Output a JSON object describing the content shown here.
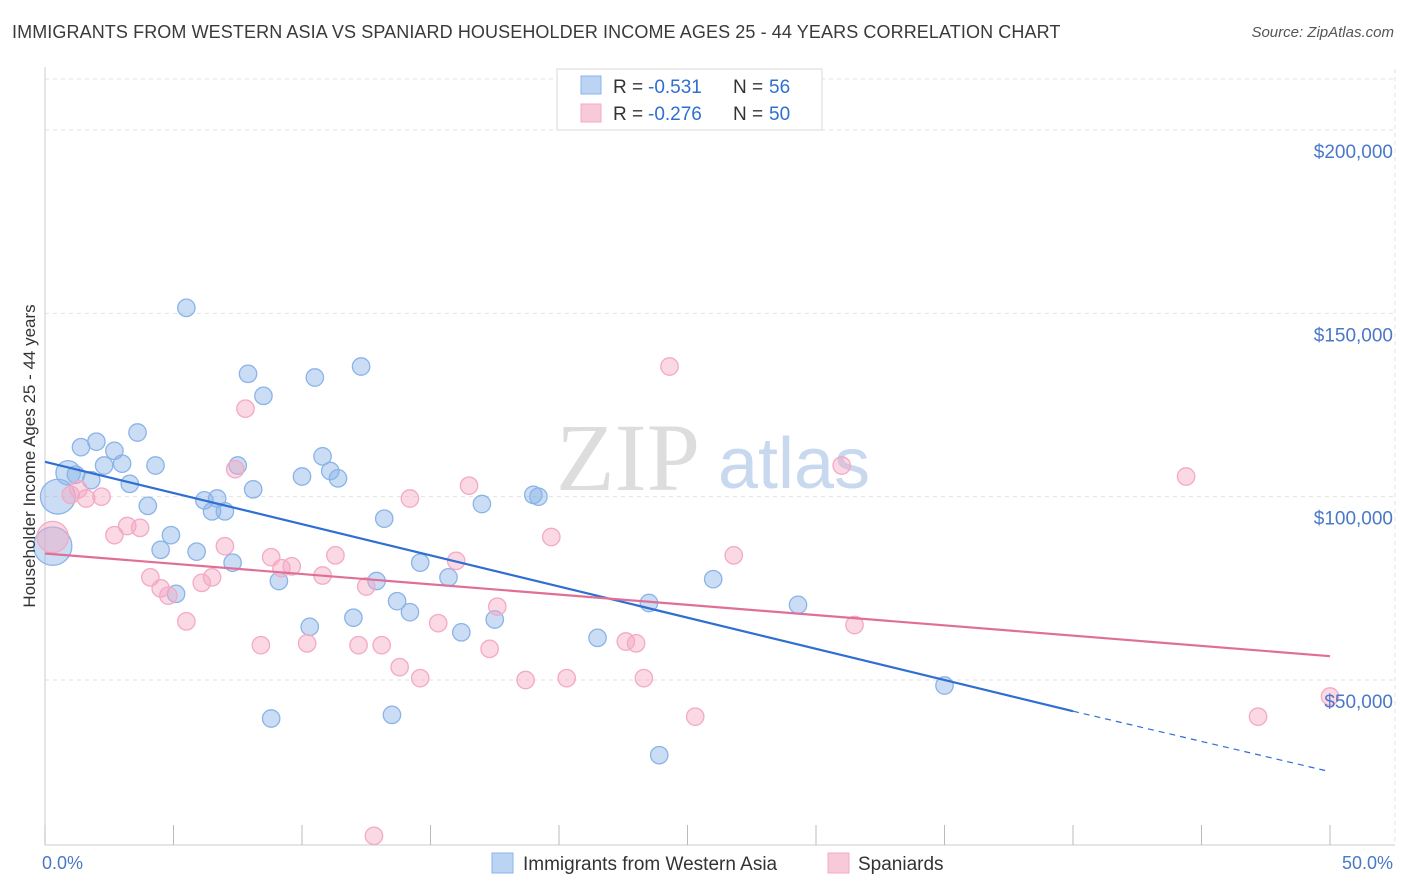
{
  "title": "IMMIGRANTS FROM WESTERN ASIA VS SPANIARD HOUSEHOLDER INCOME AGES 25 - 44 YEARS CORRELATION CHART",
  "source": "Source: ZipAtlas.com",
  "watermark": {
    "zip": "ZIP",
    "atlas": "atlas"
  },
  "legend": {
    "r_label": "R =",
    "n_label": "N =",
    "entries": [
      {
        "r": "-0.531",
        "n": "56"
      },
      {
        "r": "-0.276",
        "n": "50"
      }
    ]
  },
  "chart_data": {
    "type": "scatter",
    "ylabel": "Householder Income Ages 25 - 44 years",
    "xlim": [
      0,
      50
    ],
    "ylim": [
      5000,
      215000
    ],
    "x_tick_labels": [
      {
        "value": 0,
        "label": "0.0%"
      },
      {
        "value": 50,
        "label": "50.0%"
      }
    ],
    "y_ticks": [
      {
        "value": 50000,
        "label": "$50,000"
      },
      {
        "value": 100000,
        "label": "$100,000"
      },
      {
        "value": 150000,
        "label": "$150,000"
      },
      {
        "value": 200000,
        "label": "$200,000"
      }
    ],
    "grid": true,
    "legend_position": "top-center",
    "series": [
      {
        "name": "Immigrants from Western Asia",
        "color": "#8ab4e8",
        "line_color": "#2e6fd1",
        "trend": {
          "x0": 0,
          "y0": 109500,
          "x1": 40,
          "y1": 41500,
          "dash_to_x": 50,
          "dash_to_y": 25000
        },
        "points": [
          [
            0.3,
            86500,
            22
          ],
          [
            0.5,
            100000,
            20
          ],
          [
            0.9,
            106500,
            14
          ],
          [
            1.2,
            106000,
            10
          ],
          [
            1.4,
            113500,
            10
          ],
          [
            1.8,
            104500,
            10
          ],
          [
            2.0,
            115000,
            10
          ],
          [
            2.3,
            108500,
            10
          ],
          [
            2.7,
            112500,
            10
          ],
          [
            3.0,
            109000,
            10
          ],
          [
            3.3,
            103500,
            10
          ],
          [
            3.6,
            117500,
            10
          ],
          [
            4.0,
            97500,
            10
          ],
          [
            4.3,
            108500,
            10
          ],
          [
            4.5,
            85500,
            10
          ],
          [
            4.9,
            89500,
            10
          ],
          [
            5.1,
            73500,
            10
          ],
          [
            5.5,
            151500,
            10
          ],
          [
            5.9,
            85000,
            10
          ],
          [
            6.2,
            99000,
            10
          ],
          [
            6.5,
            96000,
            10
          ],
          [
            6.7,
            99500,
            10
          ],
          [
            7.0,
            96000,
            10
          ],
          [
            7.3,
            82000,
            10
          ],
          [
            7.5,
            108500,
            10
          ],
          [
            7.9,
            133500,
            10
          ],
          [
            8.1,
            102000,
            10
          ],
          [
            8.5,
            127500,
            10
          ],
          [
            8.8,
            39500,
            10
          ],
          [
            9.1,
            77000,
            10
          ],
          [
            10.0,
            105500,
            10
          ],
          [
            10.3,
            64500,
            10
          ],
          [
            10.5,
            132500,
            10
          ],
          [
            10.8,
            111000,
            10
          ],
          [
            11.1,
            107000,
            10
          ],
          [
            11.4,
            105000,
            10
          ],
          [
            12.0,
            67000,
            10
          ],
          [
            12.3,
            135500,
            10
          ],
          [
            12.9,
            77000,
            10
          ],
          [
            13.2,
            94000,
            10
          ],
          [
            13.5,
            40500,
            10
          ],
          [
            13.7,
            71500,
            10
          ],
          [
            14.2,
            68500,
            10
          ],
          [
            14.6,
            82000,
            10
          ],
          [
            15.7,
            78000,
            10
          ],
          [
            16.2,
            63000,
            10
          ],
          [
            17.0,
            98000,
            10
          ],
          [
            17.5,
            66500,
            10
          ],
          [
            19.0,
            100500,
            10
          ],
          [
            19.2,
            100000,
            10
          ],
          [
            21.5,
            61500,
            10
          ],
          [
            23.5,
            71000,
            10
          ],
          [
            23.9,
            29500,
            10
          ],
          [
            26.0,
            77500,
            10
          ],
          [
            29.3,
            70500,
            10
          ],
          [
            35.0,
            48500,
            10
          ]
        ]
      },
      {
        "name": "Spaniards",
        "color": "#f4a9c4",
        "line_color": "#e06f98",
        "trend": {
          "x0": 0,
          "y0": 84500,
          "x1": 50,
          "y1": 56500
        },
        "points": [
          [
            0.3,
            89000,
            18
          ],
          [
            1.0,
            100500,
            10
          ],
          [
            1.3,
            102000,
            10
          ],
          [
            1.6,
            99500,
            10
          ],
          [
            2.2,
            100000,
            10
          ],
          [
            2.7,
            89500,
            10
          ],
          [
            3.2,
            92000,
            10
          ],
          [
            3.7,
            91500,
            10
          ],
          [
            4.1,
            78000,
            10
          ],
          [
            4.5,
            75000,
            10
          ],
          [
            4.8,
            73000,
            10
          ],
          [
            5.5,
            66000,
            10
          ],
          [
            6.1,
            76500,
            10
          ],
          [
            6.5,
            78000,
            10
          ],
          [
            7.0,
            86500,
            10
          ],
          [
            7.4,
            107500,
            10
          ],
          [
            7.8,
            124000,
            10
          ],
          [
            8.4,
            59500,
            10
          ],
          [
            8.8,
            83500,
            10
          ],
          [
            9.2,
            80500,
            10
          ],
          [
            9.6,
            81000,
            10
          ],
          [
            10.2,
            60000,
            10
          ],
          [
            10.8,
            78500,
            10
          ],
          [
            11.3,
            84000,
            10
          ],
          [
            12.2,
            59500,
            10
          ],
          [
            12.5,
            75500,
            10
          ],
          [
            12.8,
            7500,
            10
          ],
          [
            13.1,
            59500,
            10
          ],
          [
            13.8,
            53500,
            10
          ],
          [
            14.2,
            99500,
            10
          ],
          [
            14.6,
            50500,
            10
          ],
          [
            15.3,
            65500,
            10
          ],
          [
            16.0,
            82500,
            10
          ],
          [
            16.5,
            103000,
            10
          ],
          [
            17.3,
            58500,
            10
          ],
          [
            17.6,
            70000,
            10
          ],
          [
            18.7,
            50000,
            10
          ],
          [
            19.7,
            89000,
            10
          ],
          [
            20.3,
            50500,
            10
          ],
          [
            22.6,
            60500,
            10
          ],
          [
            23.0,
            60000,
            10
          ],
          [
            23.3,
            50500,
            10
          ],
          [
            24.3,
            135500,
            10
          ],
          [
            25.3,
            40000,
            10
          ],
          [
            26.8,
            84000,
            10
          ],
          [
            31.0,
            108500,
            10
          ],
          [
            31.5,
            65000,
            10
          ],
          [
            44.4,
            105500,
            10
          ],
          [
            47.2,
            40000,
            10
          ],
          [
            50.0,
            45500,
            10
          ]
        ]
      }
    ]
  }
}
